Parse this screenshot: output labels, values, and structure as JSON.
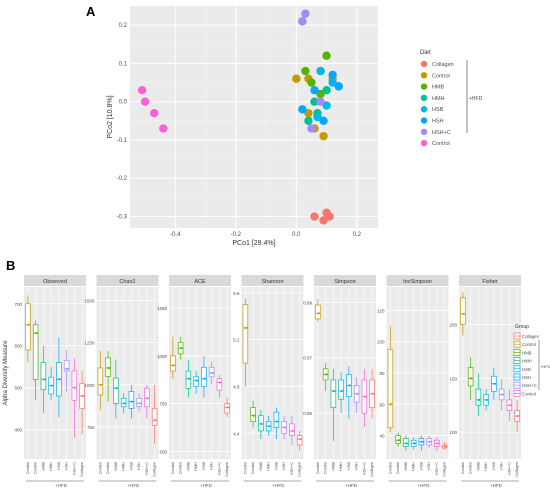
{
  "panel_a_label": "A",
  "panel_b_label": "B",
  "colors": {
    "Collagen": "#F8766D",
    "Control": "#C49A00",
    "HMB": "#53B400",
    "HMH": "#00C094",
    "HSB": "#00B6EB",
    "HSH": "#00A9FF",
    "HSH+C": "#A58AFF",
    "Control2": "#FB61D7",
    "Collagen2": "#F8766D"
  },
  "chart_data": [
    {
      "type": "scatter",
      "xlabel": "PCo1 [29.4%]",
      "ylabel": "PCo2 [10.8%]",
      "xlim": [
        -0.55,
        0.27
      ],
      "ylim": [
        -0.33,
        0.25
      ],
      "xticks": [
        -0.4,
        -0.2,
        0.0,
        0.2
      ],
      "xtick_labels": [
        "-0.4",
        "-0.2",
        "0.0",
        "0.2"
      ],
      "yticks": [
        -0.3,
        -0.2,
        -0.1,
        0.0,
        0.1,
        0.2
      ],
      "ytick_labels": [
        "-0.3",
        "-0.2",
        "-0.1",
        "0.0",
        "0.1",
        "0.2"
      ],
      "grid": true,
      "legend": {
        "title": "Diet",
        "placement": "right",
        "entries": [
          "Collagen",
          "Control",
          "HMB",
          "HMH",
          "HSB",
          "HSH",
          "HSH+C",
          "Control"
        ],
        "bracket_label": "+HFD"
      },
      "series": [
        {
          "name": "Collagen",
          "x": [
            0.09,
            0.1,
            0.11,
            0.06
          ],
          "y": [
            -0.31,
            -0.29,
            -0.3,
            -0.3
          ]
        },
        {
          "name": "Control",
          "x": [
            0.0,
            0.04,
            0.08,
            0.09,
            0.12,
            0.04,
            0.06
          ],
          "y": [
            0.06,
            0.06,
            0.08,
            -0.09,
            0.06,
            -0.03,
            -0.07
          ]
        },
        {
          "name": "HMB",
          "x": [
            0.02,
            0.1,
            0.08,
            0.05,
            0.03
          ],
          "y": [
            0.21,
            0.12,
            0.02,
            0.05,
            0.08
          ]
        },
        {
          "name": "HMH",
          "x": [
            0.1,
            0.07,
            0.04,
            0.06
          ],
          "y": [
            0.03,
            -0.03,
            -0.05,
            0.0
          ]
        },
        {
          "name": "HSB",
          "x": [
            0.12,
            0.14,
            0.1,
            0.07,
            0.08
          ],
          "y": [
            0.05,
            0.04,
            -0.01,
            -0.04,
            0.08
          ]
        },
        {
          "name": "HSH",
          "x": [
            0.12,
            0.14,
            0.06,
            0.09,
            0.02
          ],
          "y": [
            0.07,
            0.04,
            0.03,
            -0.05,
            -0.02
          ]
        },
        {
          "name": "HSH+C",
          "x": [
            0.03,
            0.02,
            0.08,
            0.05
          ],
          "y": [
            0.23,
            0.21,
            0.0,
            -0.07
          ]
        },
        {
          "name": "Control",
          "x": [
            -0.51,
            -0.5,
            -0.47,
            -0.44
          ],
          "y": [
            0.03,
            0.0,
            -0.03,
            -0.07
          ]
        }
      ]
    },
    {
      "type": "box",
      "ylabel": "Alpha Diversity Measure",
      "xtick_labels": [
        "Control",
        "Control",
        "HMB",
        "HMH",
        "HSB",
        "HSH",
        "HSH+C",
        "Collagen"
      ],
      "xaxis_group_label": "+HFD",
      "legend": {
        "title": "Group",
        "placement": "right",
        "entries": [
          "Collagen",
          "Control",
          "HMB",
          "HMH",
          "HSB",
          "HSH",
          "HSH+C",
          "Control"
        ],
        "bracket_label": "+HFD"
      },
      "facets": [
        {
          "name": "Observed",
          "ylim": [
            330,
            740
          ],
          "yticks": [
            400,
            500,
            600,
            700
          ],
          "ytick_labels": [
            "400",
            "500",
            "600",
            "700"
          ],
          "boxes": [
            [
              560,
              590,
              650,
              700,
              720
            ],
            [
              470,
              520,
              630,
              650,
              660
            ],
            [
              440,
              495,
              520,
              560,
              600
            ],
            [
              470,
              485,
              505,
              525,
              550
            ],
            [
              430,
              480,
              520,
              560,
              620
            ],
            [
              490,
              540,
              545,
              565,
              590
            ],
            [
              380,
              470,
              500,
              540,
              570
            ],
            [
              390,
              450,
              480,
              510,
              540
            ]
          ]
        },
        {
          "name": "Chao1",
          "ylim": [
            560,
            1580
          ],
          "yticks": [
            750,
            1000,
            1250,
            1500
          ],
          "ytick_labels": [
            "750",
            "1000",
            "1250",
            "1500"
          ],
          "boxes": [
            [
              850,
              940,
              1000,
              1100,
              1200
            ],
            [
              900,
              1050,
              1100,
              1160,
              1200
            ],
            [
              800,
              890,
              980,
              1040,
              1150
            ],
            [
              830,
              870,
              890,
              920,
              950
            ],
            [
              800,
              860,
              900,
              960,
              1000
            ],
            [
              840,
              870,
              890,
              920,
              950
            ],
            [
              800,
              870,
              920,
              980,
              1000
            ],
            [
              650,
              760,
              790,
              860,
              1000
            ]
          ]
        },
        {
          "name": "ACE",
          "ylim": [
            460,
            1360
          ],
          "yticks": [
            500,
            750,
            1000,
            1250
          ],
          "ytick_labels": [
            "500",
            "750",
            "1000",
            "1250"
          ],
          "boxes": [
            [
              880,
              920,
              950,
              1000,
              1100
            ],
            [
              980,
              1010,
              1040,
              1070,
              1100
            ],
            [
              780,
              830,
              880,
              920,
              980
            ],
            [
              800,
              840,
              870,
              890,
              920
            ],
            [
              780,
              840,
              880,
              940,
              1000
            ],
            [
              850,
              890,
              910,
              940,
              970
            ],
            [
              780,
              820,
              860,
              880,
              900
            ],
            [
              680,
              700,
              730,
              750,
              780
            ]
          ]
        },
        {
          "name": "Shannon",
          "ylim": [
            4.18,
            5.65
          ],
          "yticks": [
            4.4,
            4.8,
            5.2,
            5.6
          ],
          "ytick_labels": [
            "4.4",
            "4.8",
            "5.2",
            "5.6"
          ],
          "boxes": [
            [
              4.8,
              5.0,
              5.3,
              5.5,
              5.55
            ],
            [
              4.45,
              4.5,
              4.55,
              4.62,
              4.68
            ],
            [
              4.35,
              4.42,
              4.48,
              4.55,
              4.6
            ],
            [
              4.38,
              4.42,
              4.46,
              4.5,
              4.55
            ],
            [
              4.35,
              4.45,
              4.5,
              4.58,
              4.62
            ],
            [
              4.35,
              4.4,
              4.45,
              4.5,
              4.55
            ],
            [
              4.3,
              4.38,
              4.42,
              4.48,
              4.55
            ],
            [
              4.25,
              4.3,
              4.35,
              4.38,
              4.42
            ]
          ]
        },
        {
          "name": "Simpson",
          "ylim": [
            0.9335,
            0.9955
          ],
          "yticks": [
            0.95,
            0.97,
            0.99
          ],
          "ytick_labels": [
            "0.95",
            "0.97",
            "0.99"
          ],
          "boxes": [
            [
              0.983,
              0.984,
              0.986,
              0.989,
              0.991
            ],
            [
              0.958,
              0.962,
              0.964,
              0.966,
              0.968
            ],
            [
              0.94,
              0.952,
              0.958,
              0.962,
              0.966
            ],
            [
              0.95,
              0.955,
              0.958,
              0.962,
              0.965
            ],
            [
              0.948,
              0.956,
              0.96,
              0.964,
              0.967
            ],
            [
              0.95,
              0.954,
              0.957,
              0.96,
              0.963
            ],
            [
              0.945,
              0.95,
              0.956,
              0.962,
              0.966
            ],
            [
              0.948,
              0.952,
              0.957,
              0.962,
              0.966
            ]
          ]
        },
        {
          "name": "InvSimpson",
          "ylim": [
            25,
            135
          ],
          "yticks": [
            40,
            60,
            80,
            100,
            120
          ],
          "ytick_labels": [
            "40",
            "60",
            "80",
            "100",
            "120"
          ],
          "boxes": [
            [
              42,
              45,
              60,
              95,
              110
            ],
            [
              33,
              35,
              37,
              40,
              42
            ],
            [
              30,
              33,
              35,
              38,
              40
            ],
            [
              31,
              33,
              35,
              37,
              39
            ],
            [
              30,
              34,
              36,
              38,
              40
            ],
            [
              32,
              34,
              36,
              38,
              40
            ],
            [
              30,
              33,
              35,
              37,
              39
            ],
            [
              31,
              32,
              33,
              34,
              36
            ]
          ]
        },
        {
          "name": "Fisher",
          "ylim": [
            75,
            235
          ],
          "yticks": [
            100,
            150,
            200
          ],
          "ytick_labels": [
            "100",
            "150",
            "200"
          ],
          "boxes": [
            [
              190,
              200,
              210,
              225,
              230
            ],
            [
              130,
              143,
              150,
              160,
              170
            ],
            [
              115,
              125,
              130,
              140,
              155
            ],
            [
              120,
              125,
              130,
              135,
              140
            ],
            [
              130,
              138,
              145,
              152,
              160
            ],
            [
              120,
              130,
              135,
              140,
              150
            ],
            [
              110,
              120,
              125,
              130,
              140
            ],
            [
              100,
              110,
              115,
              120,
              130
            ]
          ]
        }
      ]
    }
  ]
}
